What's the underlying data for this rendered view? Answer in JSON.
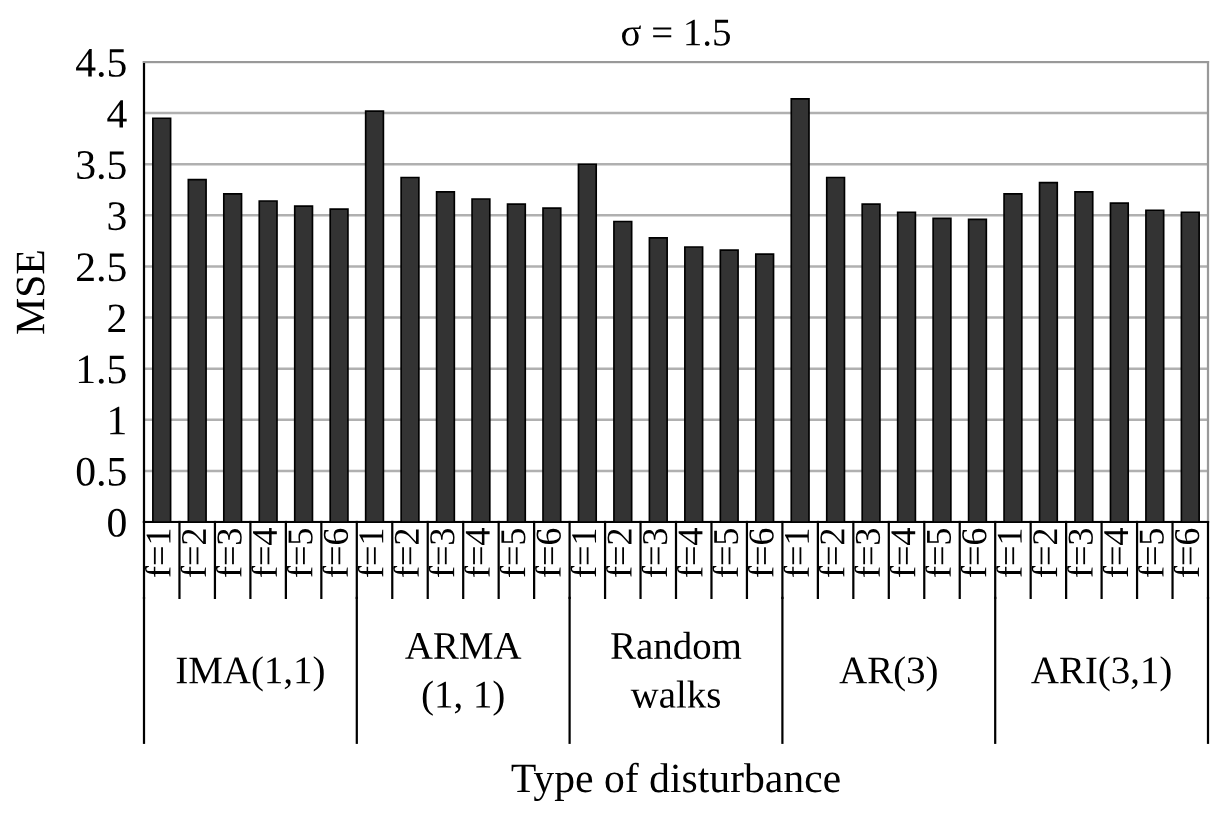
{
  "chart_data": {
    "type": "bar",
    "title": "σ = 1.5",
    "xlabel": "Type of disturbance",
    "ylabel": "MSE",
    "categories": [
      "f=1",
      "f=2",
      "f=3",
      "f=4",
      "f=5",
      "f=6",
      "f=1",
      "f=2",
      "f=3",
      "f=4",
      "f=5",
      "f=6",
      "f=1",
      "f=2",
      "f=3",
      "f=4",
      "f=5",
      "f=6",
      "f=1",
      "f=2",
      "f=3",
      "f=4",
      "f=5",
      "f=6",
      "f=1",
      "f=2",
      "f=3",
      "f=4",
      "f=5",
      "f=6"
    ],
    "values": [
      3.95,
      3.35,
      3.21,
      3.14,
      3.09,
      3.06,
      4.02,
      3.37,
      3.23,
      3.16,
      3.11,
      3.07,
      3.5,
      2.94,
      2.78,
      2.69,
      2.66,
      2.62,
      4.14,
      3.37,
      3.11,
      3.03,
      2.97,
      2.96,
      3.21,
      3.32,
      3.23,
      3.12,
      3.05,
      3.03
    ],
    "color": "#333333",
    "ylim": [
      0,
      4.5
    ],
    "yticks": [
      0,
      0.5,
      1,
      1.5,
      2,
      2.5,
      3,
      3.5,
      4,
      4.5
    ],
    "grid": "y",
    "annotations": [
      "IMA(1,1)",
      "ARMA\n(1, 1)",
      "Random\nwalks",
      "AR(3)",
      "ARI(3,1)"
    ]
  }
}
